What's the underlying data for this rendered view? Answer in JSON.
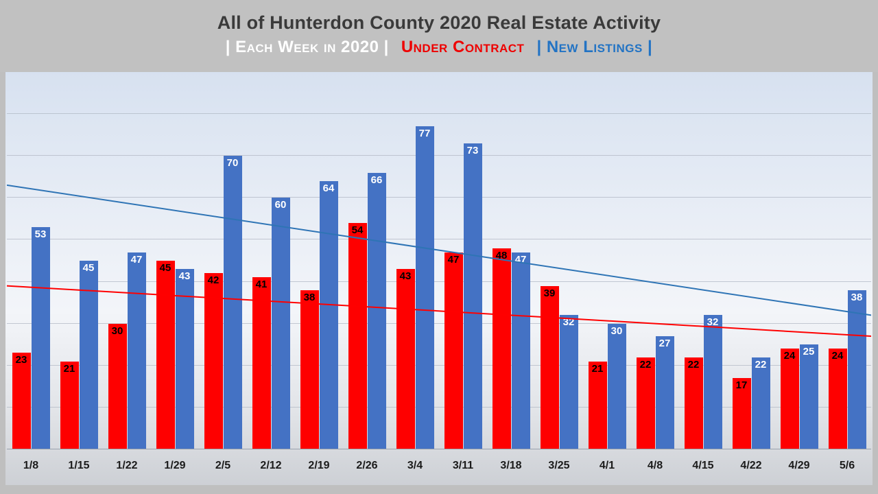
{
  "header": {
    "title": "All of Hunterdon County 2020 Real Estate Activity",
    "subtitle_parts": [
      {
        "text": "| Each Week in 2020 |",
        "color": "#ffffff"
      },
      {
        "text": "Under Contract",
        "color": "#ee0000"
      },
      {
        "text": "| New Listings |",
        "color": "#2273c4"
      }
    ]
  },
  "chart_data": {
    "type": "bar",
    "title": "All of Hunterdon County 2020 Real Estate Activity",
    "subtitle": "| Each Week in 2020 | Under Contract | New Listings |",
    "categories": [
      "1/8",
      "1/15",
      "1/22",
      "1/29",
      "2/5",
      "2/12",
      "2/19",
      "2/26",
      "3/4",
      "3/11",
      "3/18",
      "3/25",
      "4/1",
      "4/8",
      "4/15",
      "4/22",
      "4/29",
      "5/6"
    ],
    "series": [
      {
        "name": "Under Contract",
        "color": "#fe0000",
        "label_color": "#000000",
        "values": [
          23,
          21,
          30,
          45,
          42,
          41,
          38,
          54,
          43,
          47,
          48,
          39,
          21,
          22,
          22,
          17,
          24,
          24
        ]
      },
      {
        "name": "New Listings",
        "color": "#4472c4",
        "label_color": "#ffffff",
        "values": [
          53,
          45,
          47,
          43,
          70,
          60,
          64,
          66,
          77,
          73,
          47,
          32,
          30,
          27,
          32,
          22,
          25,
          38
        ]
      }
    ],
    "xlabel": "",
    "ylabel": "",
    "ylim": [
      0,
      89
    ],
    "gridlines": {
      "step": 10,
      "max": 80,
      "visible": true
    },
    "legend_position": "in-subtitle",
    "data_labels": true,
    "trendlines": [
      {
        "name": "New Listings trend",
        "color": "#2e74b5",
        "start_value": 63,
        "end_value": 32
      },
      {
        "name": "Under Contract trend",
        "color": "#ff0000",
        "start_value": 39,
        "end_value": 27
      }
    ]
  }
}
